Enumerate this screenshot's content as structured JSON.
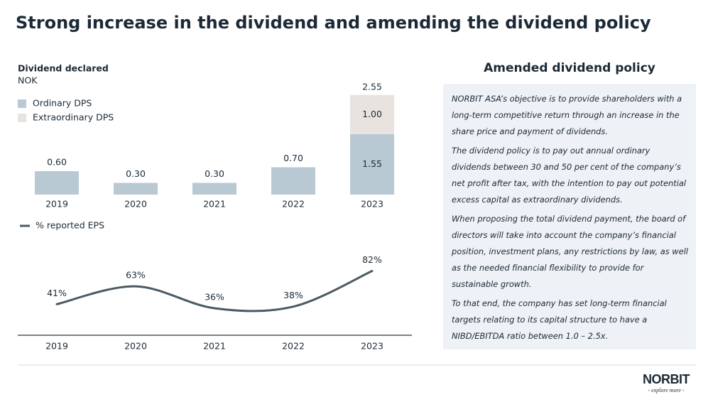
{
  "title": "Strong increase in the dividend and amending the dividend policy",
  "chart_data": [
    {
      "type": "bar",
      "title": "Dividend declared",
      "subtitle": "NOK",
      "categories": [
        "2019",
        "2020",
        "2021",
        "2022",
        "2023"
      ],
      "series": [
        {
          "name": "Ordinary DPS",
          "color": "#b9c9d3",
          "values": [
            0.6,
            0.3,
            0.3,
            0.7,
            1.55
          ],
          "value_labels": [
            "0.60",
            "0.30",
            "0.30",
            "0.70",
            "1.55"
          ]
        },
        {
          "name": "Extraordinary DPS",
          "color": "#e8e3de",
          "values": [
            null,
            null,
            null,
            null,
            1.0
          ],
          "value_labels": [
            null,
            null,
            null,
            null,
            "1.00"
          ]
        }
      ],
      "totals": {
        "values": [
          null,
          null,
          null,
          null,
          2.55
        ],
        "value_labels": [
          null,
          null,
          null,
          null,
          "2.55"
        ]
      }
    },
    {
      "type": "line",
      "categories": [
        "2019",
        "2020",
        "2021",
        "2022",
        "2023"
      ],
      "series": [
        {
          "name": "% reported EPS",
          "color": "#4a5a64",
          "values": [
            41,
            63,
            36,
            38,
            82
          ],
          "value_labels": [
            "41%",
            "63%",
            "36%",
            "38%",
            "82%"
          ]
        }
      ]
    }
  ],
  "policy": {
    "title": "Amended dividend policy",
    "paragraphs": [
      "NORBIT ASA’s objective is to provide shareholders with a long-term competitive return through an increase in the share price and payment of dividends.",
      "The dividend policy is to pay out annual ordinary dividends between 30 and 50 per cent of the company’s net profit after tax, with the intention to pay out potential excess capital as extraordinary dividends.",
      "When proposing the total dividend payment, the board of directors will take into account the company’s financial position, investment plans, any restrictions by law, as well as the needed financial flexibility to provide for sustainable growth.",
      "To that end, the company has set long-term financial targets relating to its capital structure to have a NIBD/EBITDA ratio between 1.0 – 2.5x."
    ]
  },
  "logo": {
    "name": "NORBIT",
    "tagline": "- explore more -"
  }
}
